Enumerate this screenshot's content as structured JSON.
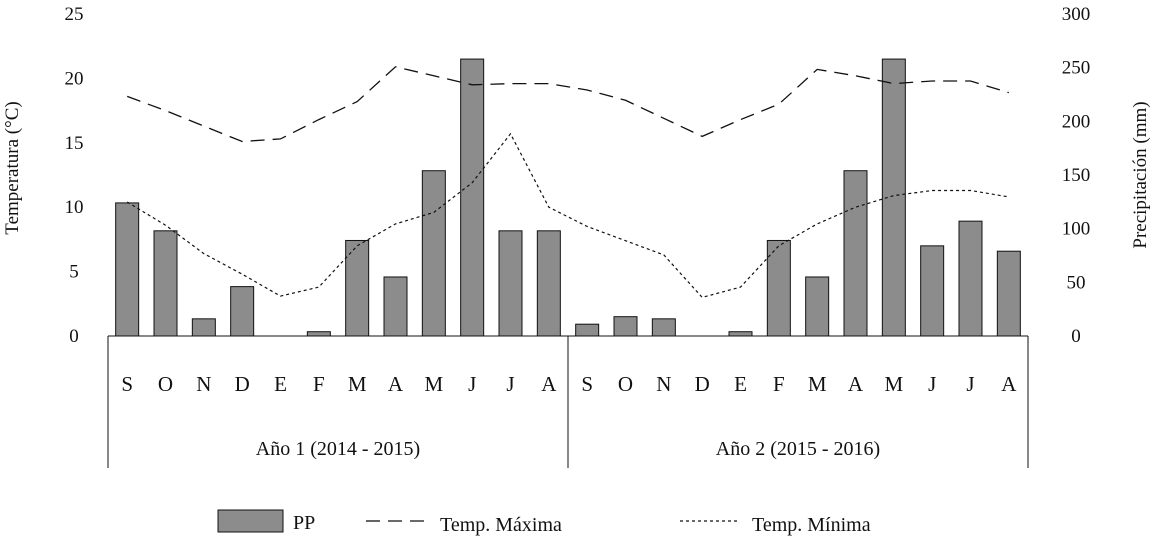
{
  "chart_data": {
    "type": "bar",
    "combo": "bar + line",
    "title": "",
    "ylabel_left": "Temperatura (°C)",
    "ylabel_right": "Precipitación (mm)",
    "ylim_left": [
      0,
      25
    ],
    "ylim_right": [
      0,
      300
    ],
    "yticks_left": [
      "0",
      "5",
      "10",
      "15",
      "20",
      "25"
    ],
    "yticks_right": [
      "0",
      "50",
      "100",
      "150",
      "200",
      "250",
      "300"
    ],
    "grid": false,
    "legend_position": "bottom",
    "categories": [
      "S",
      "O",
      "N",
      "D",
      "E",
      "F",
      "M",
      "A",
      "M",
      "J",
      "J",
      "A",
      "S",
      "O",
      "N",
      "D",
      "E",
      "F",
      "M",
      "A",
      "M",
      "J",
      "J",
      "A"
    ],
    "groups": [
      {
        "label": "Año 1 (2014 - 2015)",
        "span": [
          0,
          11
        ]
      },
      {
        "label": "Año 2 (2015 - 2016)",
        "span": [
          12,
          23
        ]
      }
    ],
    "series": [
      {
        "name": "PP",
        "type": "bar",
        "axis": "right",
        "color": "#8c8c8c",
        "values": [
          124,
          98,
          16,
          46,
          0,
          4,
          89,
          55,
          154,
          258,
          98,
          98,
          11,
          18,
          16,
          0,
          4,
          89,
          55,
          154,
          258,
          84,
          107,
          79
        ]
      },
      {
        "name": "Temp. Máxima",
        "type": "line",
        "axis": "left",
        "style": "long-dash",
        "values": [
          18.6,
          17.5,
          16.3,
          15.1,
          15.3,
          16.8,
          18.2,
          20.9,
          20.2,
          19.5,
          19.6,
          19.6,
          19.1,
          18.3,
          16.9,
          15.5,
          16.8,
          18.0,
          20.7,
          20.2,
          19.6,
          19.8,
          19.8,
          18.9
        ]
      },
      {
        "name": "Temp. Mínima",
        "type": "line",
        "axis": "left",
        "style": "short-dash",
        "values": [
          10.4,
          8.6,
          6.4,
          4.8,
          3.1,
          3.8,
          7.0,
          8.7,
          9.6,
          11.9,
          15.7,
          10.0,
          8.5,
          7.4,
          6.3,
          3.0,
          3.8,
          7.0,
          8.7,
          10.0,
          10.9,
          11.3,
          11.3,
          10.8
        ]
      }
    ]
  }
}
